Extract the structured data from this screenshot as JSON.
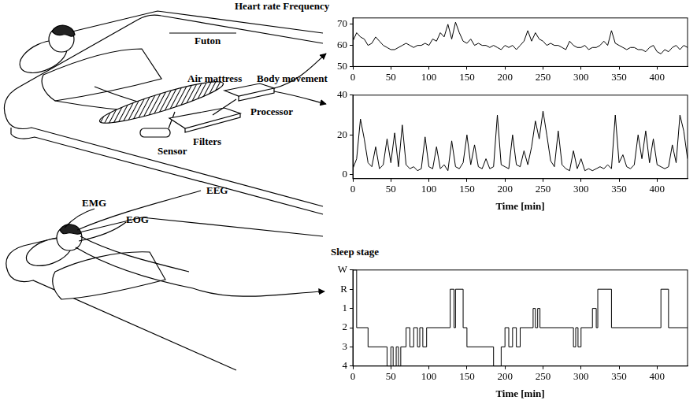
{
  "diagram": {
    "labels": {
      "futon": "Futon",
      "air_mattress": "Air mattress",
      "sensor": "Sensor",
      "filters": "Filters",
      "processor": "Processor",
      "eeg": "EEG",
      "emg": "EMG",
      "eog": "EOG"
    }
  },
  "chart_data": [
    {
      "type": "line",
      "title": "Heart rate Frequency",
      "color": "#000000",
      "grid": false,
      "x": [
        0,
        5,
        10,
        15,
        20,
        25,
        30,
        35,
        40,
        45,
        50,
        55,
        60,
        65,
        70,
        75,
        80,
        85,
        90,
        95,
        100,
        105,
        110,
        115,
        120,
        125,
        130,
        135,
        140,
        145,
        150,
        155,
        160,
        165,
        170,
        175,
        180,
        185,
        190,
        195,
        200,
        205,
        210,
        215,
        220,
        225,
        230,
        235,
        240,
        245,
        250,
        255,
        260,
        265,
        270,
        275,
        280,
        285,
        290,
        295,
        300,
        305,
        310,
        315,
        320,
        325,
        330,
        335,
        340,
        345,
        350,
        355,
        360,
        365,
        370,
        375,
        380,
        385,
        390,
        395,
        400,
        405,
        410,
        415,
        420,
        425,
        430,
        435,
        440
      ],
      "values": [
        62,
        66,
        64,
        63,
        60,
        61,
        64,
        62,
        60,
        59,
        58,
        58,
        59,
        60,
        61,
        60,
        59,
        60,
        60,
        61,
        60,
        63,
        62,
        66,
        64,
        70,
        63,
        71,
        66,
        62,
        61,
        63,
        60,
        61,
        60,
        60,
        59,
        60,
        59,
        58,
        60,
        59,
        60,
        58,
        60,
        62,
        67,
        62,
        66,
        63,
        62,
        60,
        61,
        60,
        60,
        59,
        58,
        62,
        60,
        59,
        59,
        60,
        58,
        59,
        59,
        60,
        62,
        60,
        67,
        61,
        60,
        59,
        58,
        59,
        59,
        58,
        58,
        57,
        59,
        60,
        57,
        56,
        58,
        57,
        59,
        60,
        58,
        60,
        59
      ],
      "xlim": [
        0,
        440
      ],
      "xticks": [
        0,
        50,
        100,
        150,
        200,
        250,
        300,
        350,
        400
      ],
      "ylim": [
        50,
        73
      ],
      "yticks": [
        50,
        60,
        70
      ]
    },
    {
      "type": "line",
      "title": "Body movement",
      "xlabel": "Time [min]",
      "color": "#000000",
      "grid": false,
      "x": [
        0,
        5,
        10,
        15,
        20,
        25,
        30,
        35,
        40,
        45,
        50,
        55,
        60,
        65,
        70,
        75,
        80,
        85,
        90,
        95,
        100,
        105,
        110,
        115,
        120,
        125,
        130,
        135,
        140,
        145,
        150,
        155,
        160,
        165,
        170,
        175,
        180,
        185,
        190,
        195,
        200,
        205,
        210,
        215,
        220,
        225,
        230,
        235,
        240,
        245,
        250,
        255,
        260,
        265,
        270,
        275,
        280,
        285,
        290,
        295,
        300,
        305,
        310,
        315,
        320,
        325,
        330,
        335,
        340,
        345,
        350,
        355,
        360,
        365,
        370,
        375,
        380,
        385,
        390,
        395,
        400,
        405,
        410,
        415,
        420,
        425,
        430,
        435,
        440
      ],
      "values": [
        3,
        8,
        28,
        18,
        6,
        4,
        14,
        3,
        5,
        18,
        6,
        21,
        4,
        25,
        5,
        3,
        4,
        2,
        3,
        19,
        4,
        3,
        14,
        3,
        5,
        2,
        17,
        4,
        3,
        6,
        20,
        5,
        15,
        4,
        3,
        8,
        3,
        4,
        30,
        5,
        4,
        3,
        20,
        5,
        4,
        12,
        5,
        14,
        27,
        18,
        32,
        20,
        7,
        4,
        22,
        5,
        3,
        2,
        12,
        3,
        8,
        2,
        3,
        2,
        3,
        4,
        3,
        5,
        3,
        30,
        6,
        10,
        4,
        3,
        5,
        20,
        8,
        22,
        6,
        18,
        5,
        4,
        3,
        4,
        15,
        6,
        30,
        22,
        8
      ],
      "xlim": [
        0,
        440
      ],
      "xticks": [
        0,
        50,
        100,
        150,
        200,
        250,
        300,
        350,
        400
      ],
      "ylim": [
        -2,
        40
      ],
      "yticks": [
        0,
        20,
        40
      ]
    },
    {
      "type": "step",
      "title": "Sleep stage",
      "xlabel": "Time [min]",
      "color": "#000000",
      "grid": false,
      "y_categories": [
        "W",
        "R",
        "1",
        "2",
        "3",
        "4"
      ],
      "x": [
        0,
        5,
        20,
        45,
        50,
        53,
        57,
        60,
        63,
        70,
        75,
        80,
        85,
        88,
        92,
        97,
        128,
        133,
        135,
        145,
        150,
        185,
        195,
        200,
        205,
        210,
        215,
        220,
        237,
        240,
        243,
        246,
        290,
        293,
        296,
        300,
        315,
        320,
        322,
        340,
        405,
        415,
        440
      ],
      "values": [
        "W",
        "2",
        "3",
        "4",
        "3",
        "4",
        "3",
        "4",
        "3",
        "2",
        "3",
        "2",
        "3",
        "2",
        "3",
        "2",
        "R",
        "2",
        "R",
        "2",
        "3",
        "4",
        "3",
        "2",
        "3",
        "2",
        "3",
        "2",
        "1",
        "2",
        "1",
        "2",
        "3",
        "2",
        "3",
        "2",
        "1",
        "2",
        "R",
        "2",
        "R",
        "2",
        "2"
      ],
      "xlim": [
        0,
        440
      ],
      "xticks": [
        0,
        50,
        100,
        150,
        200,
        250,
        300,
        350,
        400
      ]
    }
  ]
}
